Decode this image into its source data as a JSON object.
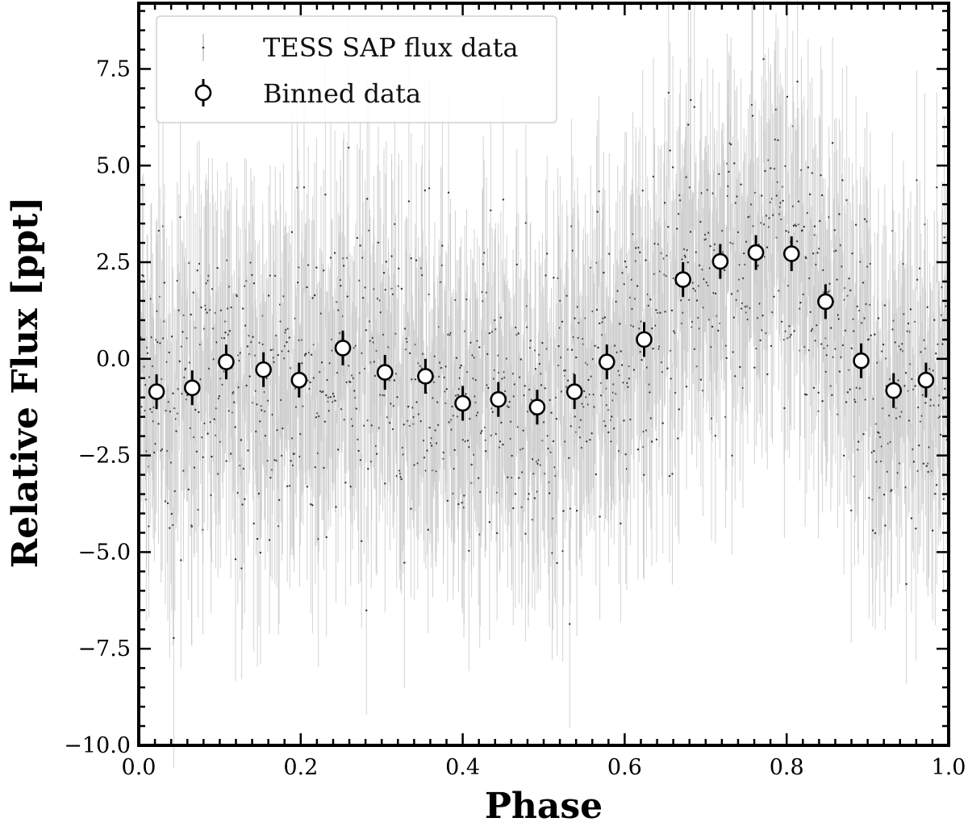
{
  "chart_data": {
    "type": "scatter",
    "xlabel": "Phase",
    "ylabel": "Relative Flux [ppt]",
    "xlim": [
      0.0,
      1.0
    ],
    "ylim": [
      -10.0,
      9.2
    ],
    "x_ticks": [
      "0.0",
      "0.2",
      "0.4",
      "0.6",
      "0.8",
      "1.0"
    ],
    "y_ticks": [
      "7.5",
      "5.0",
      "2.5",
      "0.0",
      "−2.5",
      "−5.0",
      "−7.5",
      "−10.0"
    ],
    "grid": false,
    "legend_position": "top-left",
    "legend": [
      "TESS SAP flux data",
      "Binned data"
    ],
    "series": [
      {
        "name": "TESS SAP flux data",
        "kind": "raw_points_with_errorbars",
        "count": 1300,
        "typical_error": 2.8,
        "note_points": "dense cloud following the binned trend with scatter of about ±2.5 ppt"
      },
      {
        "name": "Binned data",
        "x": [
          0.022,
          0.066,
          0.108,
          0.154,
          0.198,
          0.252,
          0.304,
          0.354,
          0.4,
          0.444,
          0.492,
          0.538,
          0.578,
          0.624,
          0.672,
          0.718,
          0.762,
          0.806,
          0.848,
          0.892,
          0.932,
          0.972
        ],
        "y": [
          -0.85,
          -0.75,
          -0.08,
          -0.28,
          -0.55,
          0.28,
          -0.35,
          -0.45,
          -1.15,
          -1.05,
          -1.25,
          -0.85,
          -0.08,
          0.5,
          2.05,
          2.52,
          2.75,
          2.72,
          1.48,
          -0.05,
          -0.82,
          -0.55
        ],
        "yerr": 0.45
      }
    ]
  }
}
